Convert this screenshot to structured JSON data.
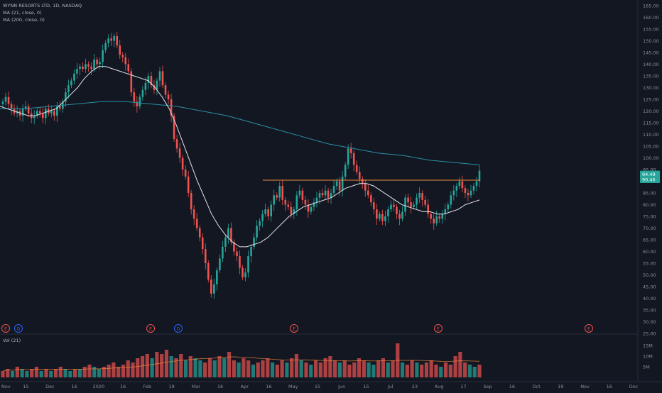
{
  "legend": {
    "symbol": "WYNN RESORTS LTD, 1D, NASDAQ",
    "ma1": "MA (21, close, 0)",
    "ma2": "MA (200, close, 0)",
    "volume": "Vol (21)"
  },
  "colors": {
    "background": "#131722",
    "up": "#26a69a",
    "down": "#ef5350",
    "ma21": "#e0e3eb",
    "ma200": "#2b8fa3",
    "resistance": "#f28b3c",
    "axis_text": "#8a8e99"
  },
  "price_badges": {
    "resistance": "90.46",
    "last": "94.49"
  },
  "earnings_markers": [
    {
      "label": "E",
      "kind": "earnings",
      "color": "#ef5350"
    },
    {
      "label": "D",
      "kind": "dividend",
      "color": "#2962ff"
    },
    {
      "label": "E",
      "kind": "earnings",
      "color": "#ef5350"
    },
    {
      "label": "D",
      "kind": "dividend",
      "color": "#2962ff"
    },
    {
      "label": "E",
      "kind": "earnings",
      "color": "#ef5350"
    },
    {
      "label": "E",
      "kind": "earnings",
      "color": "#ef5350"
    },
    {
      "label": "E",
      "kind": "earnings",
      "color": "#ef5350"
    }
  ],
  "chart_data": {
    "type": "candlestick",
    "y_axis_labels": [
      "165.00",
      "160.00",
      "155.00",
      "150.00",
      "145.00",
      "140.00",
      "135.00",
      "130.00",
      "125.00",
      "120.00",
      "115.00",
      "110.00",
      "105.00",
      "100.00",
      "95.00",
      "90.00",
      "85.00",
      "80.00",
      "75.00",
      "70.00",
      "65.00",
      "60.00",
      "55.00",
      "50.00",
      "45.00",
      "40.00",
      "35.00",
      "30.00",
      "25.00"
    ],
    "ylim": [
      25,
      165
    ],
    "x_axis_labels": [
      "Nov",
      "15",
      "Dec",
      "16",
      "2020",
      "16",
      "Feb",
      "18",
      "Mar",
      "16",
      "Apr",
      "16",
      "May",
      "15",
      "Jun",
      "15",
      "Jul",
      "23",
      "Aug",
      "17",
      "Sep",
      "16",
      "Oct",
      "19",
      "Nov",
      "16",
      "Dec"
    ],
    "volume_axis_labels": [
      "15M",
      "10M",
      "5M"
    ],
    "resistance_level": 90.46,
    "last_price": 94.49,
    "close_series": [
      124,
      126,
      123,
      121,
      119,
      120,
      118,
      121,
      122,
      119,
      117,
      118,
      120,
      119,
      117,
      121,
      119,
      120,
      118,
      122,
      121,
      124,
      128,
      131,
      133,
      136,
      138,
      139,
      138,
      140,
      139,
      138,
      142,
      140,
      141,
      146,
      149,
      151,
      150,
      152,
      148,
      144,
      143,
      140,
      137,
      128,
      124,
      122,
      126,
      129,
      132,
      135,
      131,
      129,
      133,
      137,
      131,
      127,
      125,
      118,
      108,
      104,
      100,
      95,
      92,
      85,
      78,
      74,
      70,
      66,
      61,
      55,
      48,
      42,
      46,
      52,
      57,
      62,
      66,
      70,
      64,
      60,
      58,
      53,
      49,
      51,
      58,
      62,
      66,
      71,
      73,
      76,
      78,
      75,
      80,
      84,
      83,
      88,
      82,
      80,
      79,
      76,
      78,
      84,
      86,
      82,
      80,
      77,
      79,
      81,
      83,
      85,
      84,
      86,
      83,
      85,
      88,
      90,
      86,
      92,
      97,
      104,
      102,
      97,
      94,
      91,
      89,
      86,
      84,
      81,
      78,
      74,
      76,
      73,
      75,
      78,
      80,
      79,
      76,
      74,
      77,
      83,
      81,
      79,
      80,
      83,
      85,
      82,
      80,
      76,
      74,
      72,
      75,
      74,
      76,
      78,
      80,
      84,
      86,
      88,
      90,
      87,
      85,
      84,
      86,
      88,
      90,
      94.49
    ],
    "ma21_series": [
      122,
      121,
      120,
      119,
      118,
      118,
      119,
      120,
      121,
      124,
      127,
      130,
      134,
      137,
      139,
      139,
      138,
      137,
      136,
      135,
      134,
      133,
      130,
      126,
      121,
      114,
      106,
      98,
      90,
      83,
      76,
      71,
      67,
      64,
      62,
      62,
      63,
      64,
      66,
      69,
      72,
      75,
      77,
      79,
      80,
      81,
      82,
      83,
      85,
      87,
      88,
      89,
      89,
      88,
      86,
      84,
      82,
      80,
      79,
      78,
      77,
      77,
      76,
      76,
      77,
      78,
      80,
      81,
      82
    ],
    "ma200_series": [
      121,
      121,
      122,
      123,
      124,
      124,
      123,
      122,
      120,
      118,
      115,
      112,
      109,
      106,
      104,
      102,
      101,
      99,
      98,
      97
    ],
    "volume_millions": [
      3,
      4,
      3,
      5,
      4,
      3,
      4,
      5,
      3,
      4,
      3,
      4,
      5,
      4,
      3,
      4,
      4,
      5,
      6,
      5,
      4,
      5,
      6,
      7,
      5,
      6,
      8,
      7,
      9,
      10,
      11,
      9,
      12,
      11,
      13,
      10,
      9,
      11,
      8,
      10,
      9,
      8,
      7,
      9,
      8,
      10,
      9,
      12,
      8,
      7,
      9,
      8,
      6,
      7,
      8,
      9,
      7,
      6,
      8,
      7,
      9,
      11,
      8,
      7,
      6,
      8,
      7,
      9,
      10,
      8,
      7,
      8,
      6,
      7,
      9,
      8,
      7,
      6,
      8,
      9,
      7,
      8,
      16,
      7,
      6,
      8,
      7,
      6,
      7,
      8,
      6,
      5,
      7,
      6,
      10,
      12,
      7,
      6,
      5,
      6
    ]
  }
}
